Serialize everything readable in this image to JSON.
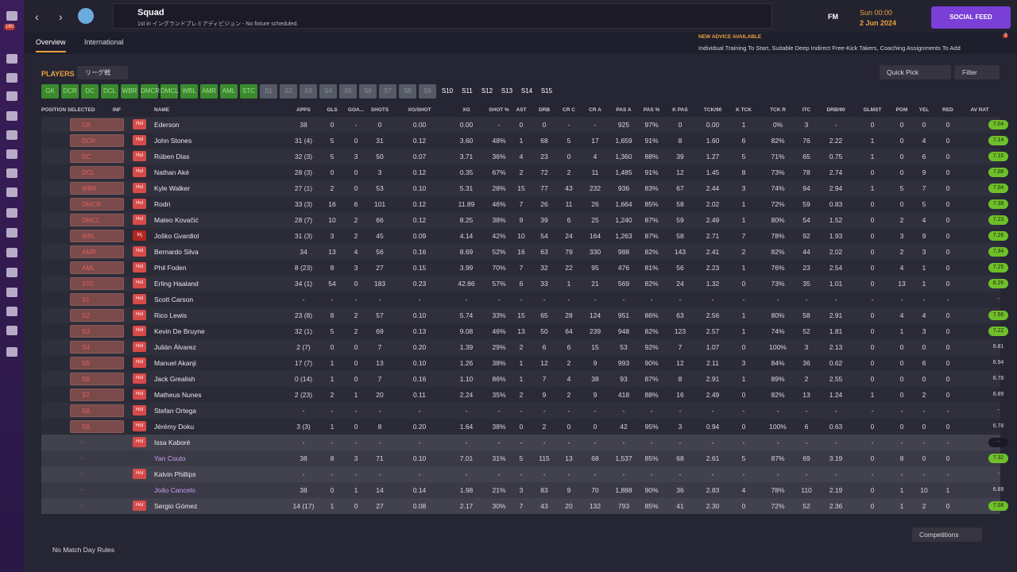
{
  "sidebar": {
    "badge": "160"
  },
  "header": {
    "title": "Squad",
    "subtitle": "1st in イングランドプレミアディビジョン - No fixture scheduled.",
    "logo_text": "FM",
    "time": "Sun 00:00",
    "date": "2 Jun 2024",
    "social": "SOCIAL FEED"
  },
  "tabs": [
    "Overview",
    "International"
  ],
  "advice": {
    "title": "NEW ADVICE AVAILABLE",
    "text": "Individual Training To Start, Suitable Deep Indirect Free-Kick Takers, Coaching Assignments To Add",
    "count": "3"
  },
  "toolbar": {
    "section": "PLAYERS",
    "competition": "リーグ戦",
    "quick_pick": "Quick Pick",
    "filter": "Filter"
  },
  "selections": {
    "filled": [
      "GK",
      "DCR",
      "DC",
      "DCL",
      "WBR",
      "DMCR",
      "DMCL",
      "WBL",
      "AMR",
      "AML",
      "STC"
    ],
    "greyed": [
      "S1",
      "S2",
      "S3",
      "S4",
      "S5",
      "S6",
      "S7",
      "S8",
      "S9"
    ],
    "open": [
      "S10",
      "S11",
      "S12",
      "S13",
      "S14",
      "S15"
    ]
  },
  "table": {
    "headers": [
      "POSITION SELECTED",
      "INF",
      "NAME",
      "APPS",
      "GLS",
      "GOA...",
      "SHOTS",
      "XG/SHOT",
      "XG",
      "SHOT %",
      "AST",
      "DRB",
      "CR C",
      "CR A",
      "PAS A",
      "PAS %",
      "K PAS",
      "TCK/90",
      "K TCK",
      "TCK R",
      "ITC",
      "DRB/90",
      "GLMST",
      "POM",
      "YEL",
      "RED",
      "AV RAT"
    ],
    "rows": [
      {
        "pos": "GK",
        "inf": "Hol",
        "name": "Ederson",
        "stats": [
          "38",
          "0",
          "-",
          "0",
          "0.00",
          "0.00",
          "-",
          "0",
          "0",
          "-",
          "-",
          "925",
          "97%",
          "0",
          "0.00",
          "1",
          "0%",
          "3",
          "-",
          "0",
          "0",
          "0",
          "0"
        ],
        "rating": "7.04",
        "rating_color": "#6fbf2a"
      },
      {
        "pos": "DCR",
        "inf": "Hol",
        "name": "John Stones",
        "stats": [
          "31 (4)",
          "5",
          "0",
          "31",
          "0.12",
          "3.60",
          "48%",
          "1",
          "68",
          "5",
          "17",
          "1,659",
          "91%",
          "8",
          "1.60",
          "6",
          "82%",
          "76",
          "2.22",
          "1",
          "0",
          "4",
          "0"
        ],
        "rating": "7.14",
        "rating_color": "#6fbf2a"
      },
      {
        "pos": "DC",
        "inf": "Hol",
        "name": "Rúben Dias",
        "stats": [
          "32 (3)",
          "5",
          "3",
          "50",
          "0.07",
          "3.71",
          "36%",
          "4",
          "23",
          "0",
          "4",
          "1,360",
          "88%",
          "39",
          "1.27",
          "5",
          "71%",
          "65",
          "0.75",
          "1",
          "0",
          "6",
          "0"
        ],
        "rating": "7.10",
        "rating_color": "#6fbf2a"
      },
      {
        "pos": "DCL",
        "inf": "Hol",
        "name": "Nathan Aké",
        "stats": [
          "28 (3)",
          "0",
          "0",
          "3",
          "0.12",
          "0.35",
          "67%",
          "2",
          "72",
          "2",
          "11",
          "1,485",
          "91%",
          "12",
          "1.45",
          "8",
          "73%",
          "78",
          "2.74",
          "0",
          "0",
          "9",
          "0"
        ],
        "rating": "7.08",
        "rating_color": "#6fbf2a"
      },
      {
        "pos": "WBR",
        "inf": "Hol",
        "name": "Kyle Walker",
        "stats": [
          "27 (1)",
          "2",
          "0",
          "53",
          "0.10",
          "5.31",
          "28%",
          "15",
          "77",
          "43",
          "232",
          "936",
          "83%",
          "67",
          "2.44",
          "3",
          "74%",
          "94",
          "2.94",
          "1",
          "5",
          "7",
          "0"
        ],
        "rating": "7.04",
        "rating_color": "#6fbf2a"
      },
      {
        "pos": "DMCR",
        "inf": "Hol",
        "name": "Rodri",
        "stats": [
          "33 (3)",
          "16",
          "6",
          "101",
          "0.12",
          "11.89",
          "46%",
          "7",
          "26",
          "11",
          "26",
          "1,664",
          "85%",
          "58",
          "2.02",
          "1",
          "72%",
          "59",
          "0.83",
          "0",
          "0",
          "5",
          "0"
        ],
        "rating": "7.38",
        "rating_color": "#6fbf2a"
      },
      {
        "pos": "DMCL",
        "inf": "Hol",
        "name": "Mateo Kovačić",
        "stats": [
          "28 (7)",
          "10",
          "2",
          "66",
          "0.12",
          "8.25",
          "38%",
          "9",
          "39",
          "6",
          "25",
          "1,240",
          "87%",
          "59",
          "2.49",
          "1",
          "80%",
          "54",
          "1.52",
          "0",
          "2",
          "4",
          "0"
        ],
        "rating": "7.23",
        "rating_color": "#6fbf2a"
      },
      {
        "pos": "WBL",
        "inf": "Inj",
        "name": "Joško Gvardiol",
        "stats": [
          "31 (3)",
          "3",
          "2",
          "45",
          "0.09",
          "4.14",
          "42%",
          "10",
          "54",
          "24",
          "164",
          "1,263",
          "87%",
          "58",
          "2.71",
          "7",
          "78%",
          "92",
          "1.93",
          "0",
          "3",
          "9",
          "0"
        ],
        "rating": "7.26",
        "rating_color": "#6fbf2a"
      },
      {
        "pos": "AMR",
        "inf": "Hol",
        "name": "Bernardo Silva",
        "stats": [
          "34",
          "13",
          "4",
          "56",
          "0.16",
          "8.69",
          "52%",
          "16",
          "63",
          "79",
          "330",
          "988",
          "82%",
          "143",
          "2.41",
          "2",
          "82%",
          "44",
          "2.02",
          "0",
          "2",
          "3",
          "0"
        ],
        "rating": "7.34",
        "rating_color": "#6fbf2a"
      },
      {
        "pos": "AML",
        "inf": "Hol",
        "name": "Phil Foden",
        "stats": [
          "8 (23)",
          "8",
          "3",
          "27",
          "0.15",
          "3.99",
          "70%",
          "7",
          "32",
          "22",
          "95",
          "476",
          "81%",
          "56",
          "2.23",
          "1",
          "76%",
          "23",
          "2.54",
          "0",
          "4",
          "1",
          "0"
        ],
        "rating": "7.25",
        "rating_color": "#6fbf2a"
      },
      {
        "pos": "STC",
        "inf": "Hol",
        "name": "Erling Haaland",
        "stats": [
          "34 (1)",
          "54",
          "0",
          "183",
          "0.23",
          "42.86",
          "57%",
          "6",
          "33",
          "1",
          "21",
          "569",
          "82%",
          "24",
          "1.32",
          "0",
          "73%",
          "35",
          "1.01",
          "0",
          "13",
          "1",
          "0"
        ],
        "rating": "8.26",
        "rating_color": "#6fbf2a"
      },
      {
        "pos": "S1",
        "inf": "Hol",
        "name": "Scott Carson",
        "stats": [
          "-",
          "-",
          "-",
          "-",
          "-",
          "-",
          "-",
          "-",
          "-",
          "-",
          "-",
          "-",
          "-",
          "-",
          "-",
          "-",
          "-",
          "-",
          "-",
          "-",
          "-",
          "-",
          "-"
        ],
        "rating": "-",
        "rating_color": "none"
      },
      {
        "pos": "S2",
        "inf": "Hol",
        "name": "Rico Lewis",
        "stats": [
          "23 (8)",
          "8",
          "2",
          "57",
          "0.10",
          "5.74",
          "33%",
          "15",
          "65",
          "28",
          "124",
          "951",
          "86%",
          "63",
          "2.56",
          "1",
          "80%",
          "58",
          "2.91",
          "0",
          "4",
          "4",
          "0"
        ],
        "rating": "7.56",
        "rating_color": "#6fbf2a"
      },
      {
        "pos": "S3",
        "inf": "Hol",
        "name": "Kevin De Bruyne",
        "stats": [
          "32 (1)",
          "5",
          "2",
          "69",
          "0.13",
          "9.08",
          "46%",
          "13",
          "50",
          "64",
          "239",
          "948",
          "82%",
          "123",
          "2.57",
          "1",
          "74%",
          "52",
          "1.81",
          "0",
          "1",
          "3",
          "0"
        ],
        "rating": "7.22",
        "rating_color": "#6fbf2a"
      },
      {
        "pos": "S4",
        "inf": "Hol",
        "name": "Julián Álvarez",
        "stats": [
          "2 (7)",
          "0",
          "0",
          "7",
          "0.20",
          "1.39",
          "29%",
          "2",
          "6",
          "6",
          "15",
          "53",
          "92%",
          "7",
          "1.07",
          "0",
          "100%",
          "3",
          "2.13",
          "0",
          "0",
          "0",
          "0"
        ],
        "rating": "6.81",
        "rating_color": "none"
      },
      {
        "pos": "S5",
        "inf": "Hol",
        "name": "Manuel Akanji",
        "stats": [
          "17 (7)",
          "1",
          "0",
          "13",
          "0.10",
          "1.26",
          "38%",
          "1",
          "12",
          "2",
          "9",
          "993",
          "90%",
          "12",
          "2.11",
          "3",
          "84%",
          "36",
          "0.62",
          "0",
          "0",
          "6",
          "0"
        ],
        "rating": "6.94",
        "rating_color": "none"
      },
      {
        "pos": "S6",
        "inf": "Hol",
        "name": "Jack Grealish",
        "stats": [
          "0 (14)",
          "1",
          "0",
          "7",
          "0.16",
          "1.10",
          "86%",
          "1",
          "7",
          "4",
          "38",
          "93",
          "87%",
          "8",
          "2.91",
          "1",
          "89%",
          "2",
          "2.55",
          "0",
          "0",
          "0",
          "0"
        ],
        "rating": "6.78",
        "rating_color": "none"
      },
      {
        "pos": "S7",
        "inf": "Hol",
        "name": "Matheus Nunes",
        "stats": [
          "2 (23)",
          "2",
          "1",
          "20",
          "0.11",
          "2.24",
          "35%",
          "2",
          "9",
          "2",
          "9",
          "418",
          "88%",
          "16",
          "2.49",
          "0",
          "82%",
          "13",
          "1.24",
          "1",
          "0",
          "2",
          "0"
        ],
        "rating": "6.89",
        "rating_color": "none"
      },
      {
        "pos": "S8",
        "inf": "Hol",
        "name": "Stefan Ortega",
        "stats": [
          "-",
          "-",
          "-",
          "-",
          "-",
          "-",
          "-",
          "-",
          "-",
          "-",
          "-",
          "-",
          "-",
          "-",
          "-",
          "-",
          "-",
          "-",
          "-",
          "-",
          "-",
          "-",
          "-"
        ],
        "rating": "-",
        "rating_color": "none"
      },
      {
        "pos": "S9",
        "inf": "Hol",
        "name": "Jérémy Doku",
        "stats": [
          "3 (3)",
          "1",
          "0",
          "8",
          "0.20",
          "1.64",
          "38%",
          "0",
          "2",
          "0",
          "0",
          "42",
          "95%",
          "3",
          "0.94",
          "0",
          "100%",
          "6",
          "0.63",
          "0",
          "0",
          "0",
          "0"
        ],
        "rating": "6.78",
        "rating_color": "none"
      },
      {
        "pos": "-",
        "inf": "Hol",
        "name": "Issa Kaboré",
        "stats": [
          "-",
          "-",
          "-",
          "-",
          "-",
          "-",
          "-",
          "-",
          "-",
          "-",
          "-",
          "-",
          "-",
          "-",
          "-",
          "-",
          "-",
          "-",
          "-",
          "-",
          "-",
          "-",
          "-"
        ],
        "rating": "-",
        "rating_color": "#1a1a24"
      },
      {
        "pos": "-",
        "inf": null,
        "name": "Yan Couto",
        "stats": [
          "38",
          "8",
          "3",
          "71",
          "0.10",
          "7.01",
          "31%",
          "5",
          "115",
          "13",
          "68",
          "1,537",
          "85%",
          "68",
          "2.61",
          "5",
          "87%",
          "69",
          "3.19",
          "0",
          "8",
          "0",
          "0"
        ],
        "rating": "7.32",
        "rating_color": "#6fbf2a"
      },
      {
        "pos": "-",
        "inf": "Hol",
        "name": "Kalvin Phillips",
        "stats": [
          "-",
          "-",
          "-",
          "-",
          "-",
          "-",
          "-",
          "-",
          "-",
          "-",
          "-",
          "-",
          "-",
          "-",
          "-",
          "-",
          "-",
          "-",
          "-",
          "-",
          "-",
          "-",
          "-"
        ],
        "rating": "-",
        "rating_color": "none"
      },
      {
        "pos": "-",
        "inf": null,
        "name": "João Cancelo",
        "stats": [
          "38",
          "0",
          "1",
          "14",
          "0.14",
          "1.98",
          "21%",
          "3",
          "83",
          "9",
          "70",
          "1,888",
          "90%",
          "36",
          "2.83",
          "4",
          "78%",
          "110",
          "2.19",
          "0",
          "1",
          "10",
          "1"
        ],
        "rating": "6.89",
        "rating_color": "none"
      },
      {
        "pos": "-",
        "inf": "Hol",
        "name": "Sergio Gómez",
        "stats": [
          "14 (17)",
          "1",
          "0",
          "27",
          "0.08",
          "2.17",
          "30%",
          "7",
          "43",
          "20",
          "132",
          "793",
          "85%",
          "41",
          "2.30",
          "0",
          "72%",
          "52",
          "2.36",
          "0",
          "1",
          "2",
          "0"
        ],
        "rating": "7.08",
        "rating_color": "#6fbf2a"
      }
    ]
  },
  "footer": {
    "rules": "No Match Day Rules",
    "competitions": "Competitions"
  }
}
